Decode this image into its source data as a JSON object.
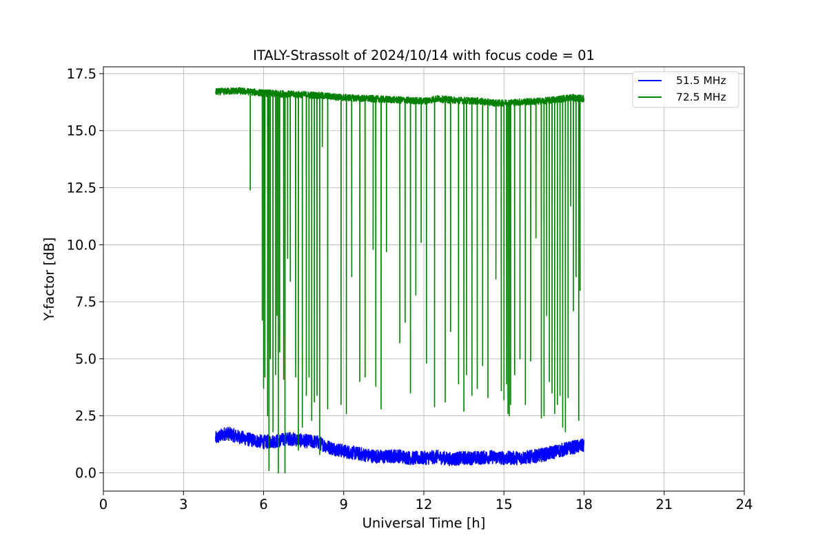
{
  "chart_data": {
    "type": "line",
    "title": "ITALY-Strassolt of 2024/10/14 with focus code = 01",
    "xlabel": "Universal Time [h]",
    "ylabel": "Y-factor [dB]",
    "xlim": [
      0,
      24
    ],
    "ylim": [
      -0.8,
      17.8
    ],
    "x_ticks": [
      0,
      3,
      6,
      9,
      12,
      15,
      18,
      21,
      24
    ],
    "x_tick_labels": [
      "0",
      "3",
      "6",
      "9",
      "12",
      "15",
      "18",
      "21",
      "24"
    ],
    "y_ticks": [
      0,
      2.5,
      5,
      7.5,
      10,
      12.5,
      15,
      17.5
    ],
    "y_tick_labels": [
      "0.0",
      "2.5",
      "5.0",
      "7.5",
      "10.0",
      "12.5",
      "15.0",
      "17.5"
    ],
    "grid": true,
    "legend_position": "top-right",
    "series": [
      {
        "name": "51.5 MHz",
        "color": "#0000ff",
        "x_range": [
          4.2,
          18.0
        ],
        "baseline": [
          [
            4.2,
            1.5
          ],
          [
            4.6,
            1.75
          ],
          [
            5.0,
            1.6
          ],
          [
            5.5,
            1.45
          ],
          [
            6.0,
            1.35
          ],
          [
            6.5,
            1.4
          ],
          [
            7.0,
            1.5
          ],
          [
            7.5,
            1.4
          ],
          [
            8.0,
            1.35
          ],
          [
            8.5,
            1.1
          ],
          [
            9.0,
            0.95
          ],
          [
            9.5,
            0.85
          ],
          [
            10.0,
            0.75
          ],
          [
            10.5,
            0.7
          ],
          [
            11.0,
            0.75
          ],
          [
            11.5,
            0.65
          ],
          [
            12.0,
            0.65
          ],
          [
            12.5,
            0.7
          ],
          [
            13.0,
            0.6
          ],
          [
            13.5,
            0.65
          ],
          [
            14.0,
            0.65
          ],
          [
            14.5,
            0.7
          ],
          [
            15.0,
            0.65
          ],
          [
            15.5,
            0.65
          ],
          [
            16.0,
            0.7
          ],
          [
            16.5,
            0.8
          ],
          [
            17.0,
            0.95
          ],
          [
            17.5,
            1.1
          ],
          [
            18.0,
            1.2
          ]
        ],
        "noise_amplitude": 0.3
      },
      {
        "name": "72.5 MHz",
        "color": "#008000",
        "x_range": [
          4.2,
          18.0
        ],
        "baseline": [
          [
            4.2,
            16.7
          ],
          [
            5.0,
            16.75
          ],
          [
            6.0,
            16.65
          ],
          [
            7.0,
            16.6
          ],
          [
            8.0,
            16.55
          ],
          [
            9.0,
            16.45
          ],
          [
            10.0,
            16.4
          ],
          [
            11.0,
            16.35
          ],
          [
            12.0,
            16.3
          ],
          [
            12.5,
            16.4
          ],
          [
            13.0,
            16.35
          ],
          [
            14.0,
            16.3
          ],
          [
            14.8,
            16.2
          ],
          [
            15.5,
            16.25
          ],
          [
            16.5,
            16.3
          ],
          [
            17.5,
            16.45
          ],
          [
            18.0,
            16.4
          ]
        ],
        "noise_amplitude": 0.15,
        "dips": [
          [
            5.5,
            12.4
          ],
          [
            5.95,
            6.7
          ],
          [
            6.0,
            3.7
          ],
          [
            6.05,
            4.2
          ],
          [
            6.15,
            2.5
          ],
          [
            6.2,
            0.1
          ],
          [
            6.25,
            5.0
          ],
          [
            6.35,
            1.8
          ],
          [
            6.45,
            4.3
          ],
          [
            6.5,
            6.9
          ],
          [
            6.55,
            0.0
          ],
          [
            6.6,
            5.3
          ],
          [
            6.75,
            4.1
          ],
          [
            6.8,
            0.0
          ],
          [
            6.9,
            9.4
          ],
          [
            7.0,
            8.4
          ],
          [
            7.2,
            4.2
          ],
          [
            7.3,
            1.0
          ],
          [
            7.45,
            2.0
          ],
          [
            7.6,
            3.4
          ],
          [
            7.7,
            4.2
          ],
          [
            7.8,
            2.3
          ],
          [
            7.9,
            3.1
          ],
          [
            8.0,
            3.4
          ],
          [
            8.1,
            0.8
          ],
          [
            8.2,
            14.3
          ],
          [
            8.4,
            2.8
          ],
          [
            8.9,
            3.0
          ],
          [
            9.1,
            2.6
          ],
          [
            9.3,
            8.6
          ],
          [
            9.6,
            4.0
          ],
          [
            9.8,
            4.2
          ],
          [
            10.1,
            9.8
          ],
          [
            10.2,
            3.8
          ],
          [
            10.4,
            2.8
          ],
          [
            10.6,
            9.7
          ],
          [
            11.1,
            5.7
          ],
          [
            11.3,
            6.6
          ],
          [
            11.5,
            3.5
          ],
          [
            11.7,
            7.8
          ],
          [
            11.9,
            10.1
          ],
          [
            12.1,
            4.8
          ],
          [
            12.4,
            2.9
          ],
          [
            12.8,
            3.1
          ],
          [
            13.0,
            6.2
          ],
          [
            13.3,
            3.9
          ],
          [
            13.5,
            2.7
          ],
          [
            13.6,
            4.3
          ],
          [
            13.8,
            3.4
          ],
          [
            14.0,
            3.7
          ],
          [
            14.2,
            4.7
          ],
          [
            14.4,
            3.3
          ],
          [
            14.7,
            8.5
          ],
          [
            14.9,
            3.6
          ],
          [
            15.0,
            3.2
          ],
          [
            15.1,
            3.9
          ],
          [
            15.15,
            2.6
          ],
          [
            15.2,
            2.5
          ],
          [
            15.25,
            3.0
          ],
          [
            15.4,
            4.3
          ],
          [
            15.6,
            5.0
          ],
          [
            15.8,
            3.0
          ],
          [
            16.0,
            4.9
          ],
          [
            16.2,
            10.3
          ],
          [
            16.4,
            2.4
          ],
          [
            16.5,
            2.5
          ],
          [
            16.6,
            6.9
          ],
          [
            16.7,
            4.0
          ],
          [
            16.8,
            3.5
          ],
          [
            16.9,
            2.6
          ],
          [
            17.0,
            3.0
          ],
          [
            17.1,
            3.4
          ],
          [
            17.2,
            2.0
          ],
          [
            17.3,
            1.8
          ],
          [
            17.4,
            3.3
          ],
          [
            17.5,
            11.7
          ],
          [
            17.6,
            7.1
          ],
          [
            17.7,
            8.6
          ],
          [
            17.8,
            2.3
          ],
          [
            17.85,
            8.0
          ]
        ]
      }
    ]
  }
}
